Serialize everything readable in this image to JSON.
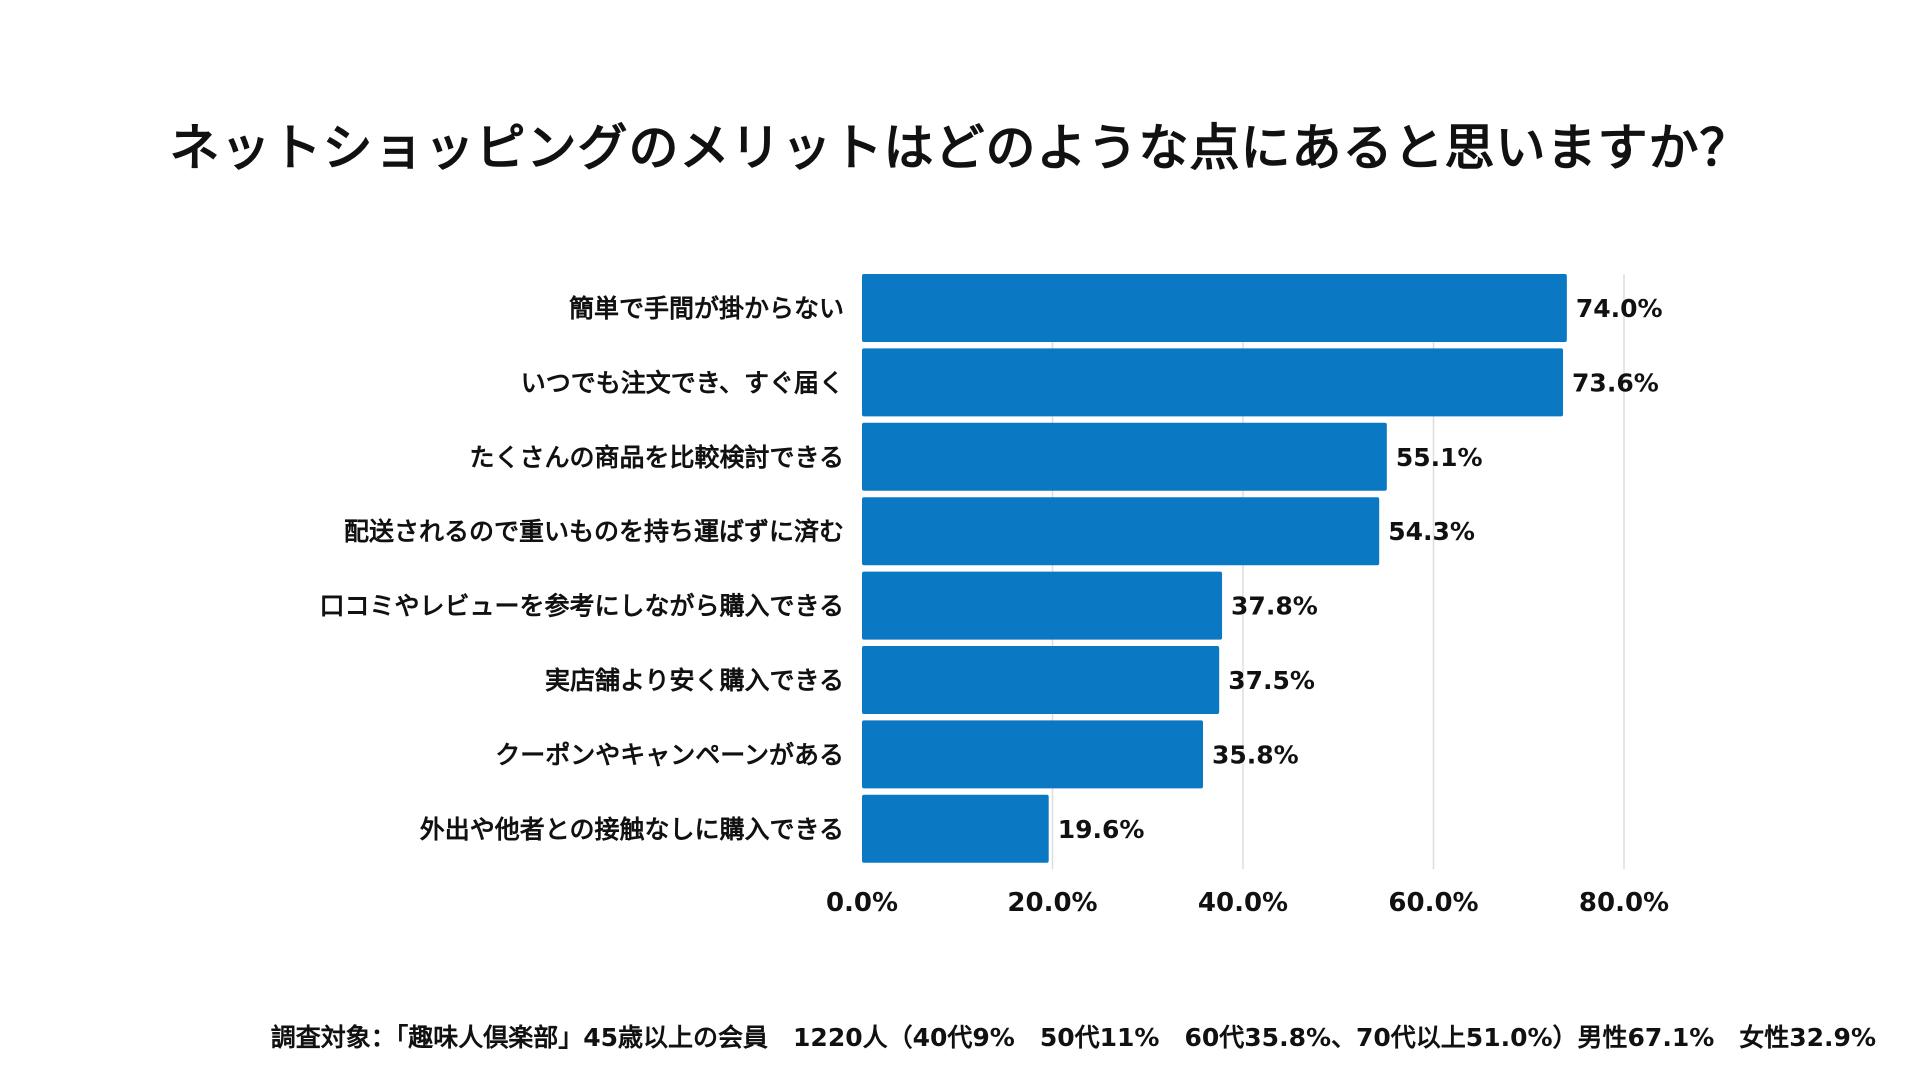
{
  "chart_data": {
    "type": "bar",
    "orientation": "horizontal",
    "title": "ネットショッピングのメリットはどのような点にあると思いますか？",
    "categories": [
      "簡単で手間が掛からない",
      "いつでも注文でき、すぐ届く",
      "たくさんの商品を比較検討できる",
      "配送されるので重いものを持ち運ばずに済む",
      "口コミやレビューを参考にしながら購入できる",
      "実店舗より安く購入できる",
      "クーポンやキャンペーンがある",
      "外出や他者との接触なしに購入できる"
    ],
    "values": [
      74.0,
      73.6,
      55.1,
      54.3,
      37.8,
      37.5,
      35.8,
      19.6
    ],
    "value_labels": [
      "74.0%",
      "73.6%",
      "55.1%",
      "54.3%",
      "37.8%",
      "37.5%",
      "35.8%",
      "19.6%"
    ],
    "xlim": [
      0,
      80
    ],
    "xticks": [
      0,
      20,
      40,
      60,
      80
    ],
    "xtick_labels": [
      "0.0%",
      "20.0%",
      "40.0%",
      "60.0%",
      "80.0%"
    ],
    "grid": true,
    "bar_color": "#0a78c2",
    "grid_color": "#dddddd"
  },
  "footnote": "調査対象：「趣味人倶楽部」45歳以上の会員　1220人（40代9%　50代11%　60代35.8%、70代以上51.0%）男性67.1%　女性32.9%"
}
